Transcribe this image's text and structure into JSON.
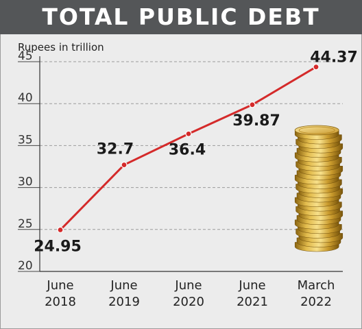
{
  "chart_data": {
    "type": "line",
    "title": "TOTAL PUBLIC DEBT",
    "ylabel": "Rupees in trillion",
    "xlabel": "",
    "categories": [
      [
        "June",
        "2018"
      ],
      [
        "June",
        "2019"
      ],
      [
        "June",
        "2020"
      ],
      [
        "June",
        "2021"
      ],
      [
        "March",
        "2022"
      ]
    ],
    "values": [
      24.95,
      32.7,
      36.4,
      39.87,
      44.37
    ],
    "data_labels": [
      "24.95",
      "32.7",
      "36.4",
      "39.87",
      "44.37"
    ],
    "ylim": [
      20,
      45
    ],
    "yticks": [
      20,
      25,
      30,
      35,
      40,
      45
    ],
    "grid": true,
    "line_color": "#d42a2a",
    "decoration": "gold-coin-stack-icon"
  }
}
